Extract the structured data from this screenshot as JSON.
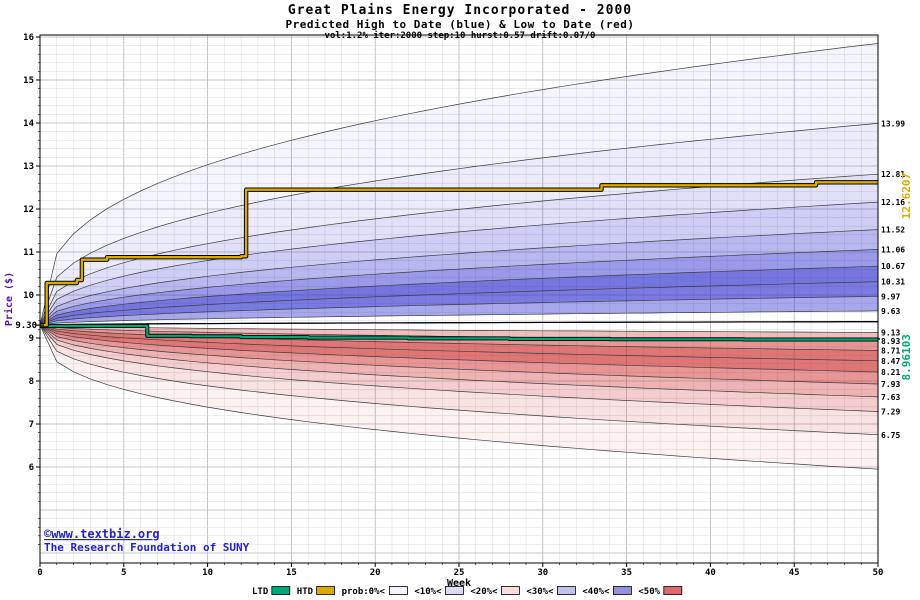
{
  "watermark": {
    "line1": "©www.textbiz.org",
    "line2": "The Research Foundation of SUNY"
  },
  "chart_data": {
    "type": "area",
    "title": "Great Plains Energy Incorporated - 2000",
    "subtitle": "Predicted High to Date (blue) &  Low to Date (red)",
    "params_line": "vol:1.2% iter:2000 step:10 hurst:0.57 drift:0.07/0",
    "xlabel": "Week",
    "ylabel": "Price ($)",
    "xlim": [
      0,
      50
    ],
    "ylim": [
      3.8,
      16.05
    ],
    "x_ticks": [
      0,
      5,
      10,
      15,
      20,
      25,
      30,
      35,
      40,
      45,
      50
    ],
    "y_ticks": [
      6,
      7,
      8,
      9,
      10,
      11,
      12,
      13,
      14,
      15,
      16
    ],
    "grid": "minor every 0.2 price / 1 week, major every 1.0 price / 5 weeks",
    "start_week": 0,
    "start_price": 9.3,
    "start_label": "9.30",
    "high_envelope_end": 15.85,
    "high_decile_ends": [
      13.99,
      12.81,
      12.16,
      11.52,
      11.06,
      10.67,
      10.31,
      9.97,
      9.63
    ],
    "high_decile_labels": [
      "13.99",
      "12.81",
      "12.16",
      "11.52",
      "11.06",
      "10.67",
      "10.31",
      "9.97",
      "9.63"
    ],
    "low_decile_ends": [
      9.13,
      8.93,
      8.71,
      8.47,
      8.21,
      7.93,
      7.63,
      7.29,
      6.75
    ],
    "low_decile_labels": [
      "9.13",
      "8.93",
      "8.71",
      "8.47",
      "8.21",
      "7.93",
      "7.63",
      "7.29",
      "6.75"
    ],
    "low_envelope_end": 5.95,
    "median_end": 9.38,
    "htd": {
      "name": "HTD",
      "end_label": "12.6207",
      "final": 12.6207,
      "points": [
        [
          0,
          9.3
        ],
        [
          0.4,
          10.28
        ],
        [
          2.2,
          10.35
        ],
        [
          2.5,
          10.82
        ],
        [
          4,
          10.88
        ],
        [
          12,
          10.9
        ],
        [
          12.3,
          12.45
        ],
        [
          33,
          12.45
        ],
        [
          33.5,
          12.55
        ],
        [
          46,
          12.55
        ],
        [
          46.3,
          12.62
        ],
        [
          50,
          12.62
        ]
      ]
    },
    "ltd": {
      "name": "LTD",
      "end_label": "8.96103",
      "final": 8.96103,
      "points": [
        [
          0,
          9.28
        ],
        [
          6,
          9.28
        ],
        [
          6.4,
          9.05
        ],
        [
          9,
          9.04
        ],
        [
          12,
          9.02
        ],
        [
          16,
          9.01
        ],
        [
          22,
          8.99
        ],
        [
          28,
          8.98
        ],
        [
          34,
          8.97
        ],
        [
          42,
          8.965
        ],
        [
          50,
          8.961
        ]
      ]
    },
    "legend": [
      {
        "label": "LTD",
        "color": "#00a878"
      },
      {
        "label": "HTD",
        "color": "#ddaa00"
      },
      {
        "label": "prob:0%<",
        "color": "#f4f4fc"
      },
      {
        "label": "<10%<",
        "color": "#dcdcf8"
      },
      {
        "label": "<20%<",
        "color": "#f8dcdc"
      },
      {
        "label": "<30%<",
        "color": "#c2c2f0"
      },
      {
        "label": "<40%<",
        "color": "#9292e0"
      },
      {
        "label": "<50%",
        "color": "#e06868"
      }
    ],
    "colors": {
      "high": "#2222cc",
      "low": "#cc2222",
      "htd": "#ddaa00",
      "ltd": "#00a878",
      "median": "#000000",
      "grid_minor": "#d8d8e0",
      "grid_major": "#b4b4bc",
      "axis": "#000000",
      "ylabel": "#5511aa",
      "watermark": "#2222cc"
    },
    "band_opacities_high": [
      0.05,
      0.09,
      0.14,
      0.22,
      0.32,
      0.46,
      0.62,
      0.6,
      0.4
    ],
    "band_opacities_low": [
      0.3,
      0.48,
      0.62,
      0.62,
      0.48,
      0.34,
      0.22,
      0.13,
      0.06
    ],
    "curve_shape": {
      "outer_exponent": 0.35,
      "inner_exponent": 0.5,
      "median_exponent": 0.5
    }
  }
}
